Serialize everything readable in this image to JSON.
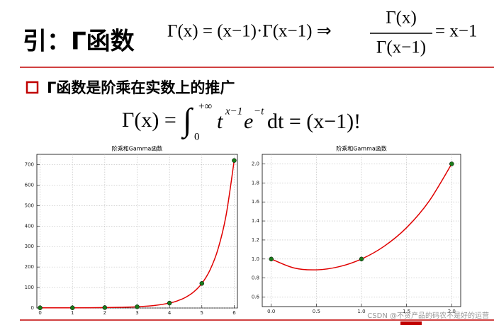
{
  "title": "引：Γ函数",
  "header_formula": {
    "lhs": "Γ(x) = (x−1)·Γ(x−1) ⇒",
    "numerator": "Γ(x)",
    "denominator": "Γ(x−1)",
    "rhs": "= x−1"
  },
  "bullet": "Γ函数是阶乘在实数上的推广",
  "integral_formula": {
    "lhs": "Γ(x) =",
    "integral": "∫",
    "upper": "+∞",
    "lower": "0",
    "base": "t",
    "power": "x−1",
    "exp_base": "e",
    "exp_power": "−t",
    "rhs": "dt = (x−1)!"
  },
  "watermark": "CSDN @不贪产品的码农不是好的运营",
  "chart_data": [
    {
      "type": "line",
      "title": "阶乘和Gamma函数",
      "grid": true,
      "xlim": [
        -0.1,
        6.1
      ],
      "xticks": [
        0,
        1,
        2,
        3,
        4,
        5,
        6
      ],
      "ylim": [
        0,
        750
      ],
      "yticks": [
        0,
        100,
        200,
        300,
        400,
        500,
        600,
        700
      ],
      "series": [
        {
          "mode": "line",
          "color": "#e00000",
          "x": [
            0,
            0.5,
            1,
            1.5,
            2,
            2.5,
            3,
            3.5,
            4,
            4.25,
            4.5,
            4.75,
            5,
            5.25,
            5.5,
            5.75,
            6
          ],
          "values": [
            1,
            0.886,
            1,
            1.329,
            2,
            3.323,
            6,
            11.632,
            24,
            35.21,
            52.34,
            78.79,
            120,
            184.86,
            287.89,
            453.0,
            720
          ]
        },
        {
          "mode": "markers",
          "color": "#1a7a1a",
          "x": [
            0,
            1,
            2,
            3,
            4,
            5,
            6
          ],
          "values": [
            1,
            1,
            2,
            6,
            24,
            120,
            720
          ]
        }
      ]
    },
    {
      "type": "line",
      "title": "阶乘和Gamma函数",
      "grid": true,
      "xlim": [
        -0.1,
        2.1
      ],
      "xticks": [
        {
          "value": 0,
          "label": "0.0"
        },
        0.5,
        {
          "value": 1,
          "label": "1.0"
        },
        1.5,
        {
          "value": 2,
          "label": "2.0"
        }
      ],
      "ylim": [
        0.5,
        2.1
      ],
      "yticks": [
        0.6,
        0.8,
        {
          "value": 1,
          "label": "1.0"
        },
        1.2,
        1.4,
        1.6,
        1.8,
        {
          "value": 2,
          "label": "2.0"
        }
      ],
      "series": [
        {
          "mode": "line",
          "color": "#e00000",
          "x": [
            0,
            0.25,
            0.5,
            0.75,
            1,
            1.25,
            1.5,
            1.75,
            2
          ],
          "values": [
            1,
            0.9064,
            0.8862,
            0.9191,
            1,
            1.133,
            1.3293,
            1.6084,
            2
          ]
        },
        {
          "mode": "markers",
          "color": "#1a7a1a",
          "x": [
            0,
            1,
            2
          ],
          "values": [
            1,
            1,
            2
          ]
        }
      ]
    }
  ]
}
